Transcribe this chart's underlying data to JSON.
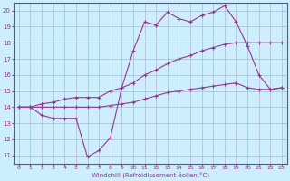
{
  "title": "",
  "xlabel": "Windchill (Refroidissement éolien,°C)",
  "ylabel": "",
  "bg_color": "#cceeff",
  "grid_color": "#aabbcc",
  "line_color": "#993399",
  "xlim": [
    -0.5,
    23.5
  ],
  "ylim": [
    10.5,
    20.5
  ],
  "xticks": [
    0,
    1,
    2,
    3,
    4,
    5,
    6,
    7,
    8,
    9,
    10,
    11,
    12,
    13,
    14,
    15,
    16,
    17,
    18,
    19,
    20,
    21,
    22,
    23
  ],
  "yticks": [
    11,
    12,
    13,
    14,
    15,
    16,
    17,
    18,
    19,
    20
  ],
  "line1_x": [
    0,
    1,
    2,
    3,
    4,
    5,
    6,
    7,
    8,
    9,
    10,
    11,
    12,
    13,
    14,
    15,
    16,
    17,
    18,
    19,
    20,
    21,
    22,
    23
  ],
  "line1_y": [
    14.0,
    14.0,
    13.5,
    13.3,
    13.3,
    13.3,
    10.9,
    11.3,
    12.1,
    15.2,
    17.5,
    19.3,
    19.1,
    19.9,
    19.5,
    19.3,
    19.7,
    19.9,
    20.3,
    19.3,
    17.8,
    16.0,
    15.1,
    15.2
  ],
  "line2_x": [
    0,
    1,
    2,
    3,
    4,
    5,
    6,
    7,
    8,
    9,
    10,
    11,
    12,
    13,
    14,
    15,
    16,
    17,
    18,
    19,
    20,
    21,
    22,
    23
  ],
  "line2_y": [
    14.0,
    14.0,
    14.2,
    14.3,
    14.5,
    14.6,
    14.6,
    14.6,
    15.0,
    15.2,
    15.5,
    16.0,
    16.3,
    16.7,
    17.0,
    17.2,
    17.5,
    17.7,
    17.9,
    18.0,
    18.0,
    18.0,
    18.0,
    18.0
  ],
  "line3_x": [
    0,
    1,
    2,
    3,
    4,
    5,
    6,
    7,
    8,
    9,
    10,
    11,
    12,
    13,
    14,
    15,
    16,
    17,
    18,
    19,
    20,
    21,
    22,
    23
  ],
  "line3_y": [
    14.0,
    14.0,
    14.0,
    14.0,
    14.0,
    14.0,
    14.0,
    14.0,
    14.1,
    14.2,
    14.3,
    14.5,
    14.7,
    14.9,
    15.0,
    15.1,
    15.2,
    15.3,
    15.4,
    15.5,
    15.2,
    15.1,
    15.1,
    15.2
  ]
}
